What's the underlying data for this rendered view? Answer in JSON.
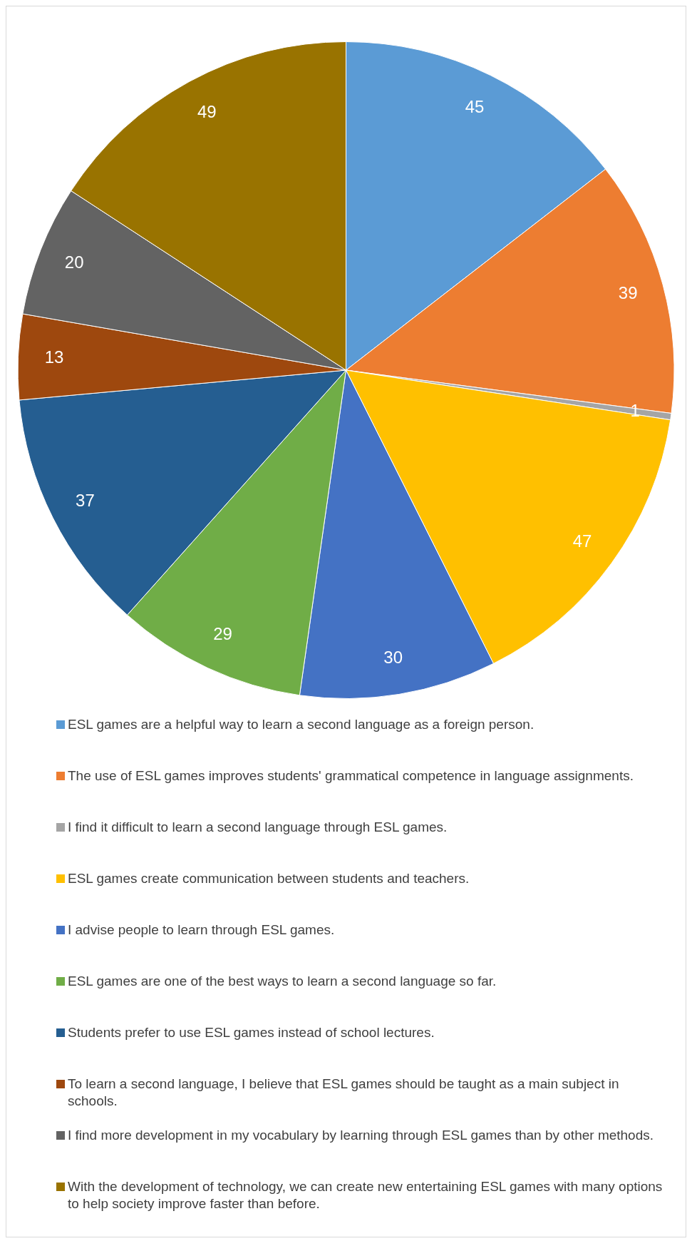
{
  "chart_data": {
    "type": "pie",
    "categories": [
      "ESL games are a helpful way to learn a second language as a foreign person.",
      "The use of ESL games improves students' grammatical competence in language assignments.",
      "I find it difficult to learn a second language through ESL games.",
      "ESL games create communication between students and teachers.",
      "I advise people to learn through ESL games.",
      "ESL games are one of the best ways to learn a second language so far.",
      "Students prefer to use ESL games instead of school lectures.",
      "To learn a second language, I believe that ESL games should be taught as a main subject in schools.",
      "I find more development in my vocabulary by learning through ESL games than by other methods.",
      "With the development of technology, we can create new entertaining ESL games with many options to help society improve faster than before."
    ],
    "values": [
      45,
      39,
      1,
      47,
      30,
      29,
      37,
      13,
      20,
      49
    ],
    "colors": [
      "#5b9bd5",
      "#ed7d31",
      "#a5a5a5",
      "#ffc000",
      "#4472c4",
      "#70ad47",
      "#255e91",
      "#9e480e",
      "#636363",
      "#997300"
    ],
    "data_labels": true,
    "legend": "bottom"
  }
}
